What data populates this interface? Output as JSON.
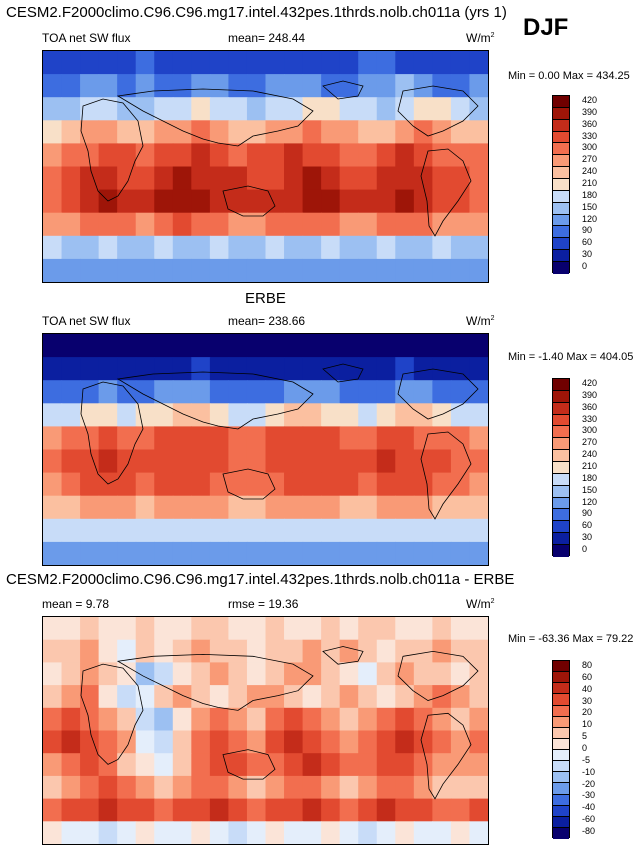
{
  "figure": {
    "title": "CESM2.F2000climo.C96.C96.mg17.intel.432pes.1thrds.nolb.ch011a (yrs 1)",
    "season": "DJF"
  },
  "colors": {
    "sw_scale": [
      "#08006e",
      "#0b1fa0",
      "#1f43c8",
      "#3d6de0",
      "#6b9bea",
      "#9cc0f2",
      "#c8dcf8",
      "#f8e0c8",
      "#fbc0a0",
      "#f99a76",
      "#f26e4f",
      "#e24a30",
      "#c42c1a",
      "#9e1508",
      "#700000"
    ],
    "diff_scale": [
      "#08006e",
      "#0b1fa0",
      "#1f43c8",
      "#3d6de0",
      "#6b9bea",
      "#9cc0f2",
      "#c8dcf8",
      "#e4eefb",
      "#fbe4d8",
      "#fbc7ae",
      "#f99a76",
      "#f26e4f",
      "#e24a30",
      "#c42c1a",
      "#9e1508",
      "#700000"
    ]
  },
  "chart_data": [
    {
      "type": "heatmap",
      "panel": "model",
      "variable_label": "TOA net SW flux",
      "mean_label": "mean=",
      "mean": "248.44",
      "units": "W/m",
      "units_exp": "2",
      "min_label": "Min =",
      "min": "0.00",
      "max_label": "Max =",
      "max": "434.25",
      "colorbar_levels": [
        "420",
        "390",
        "360",
        "330",
        "300",
        "270",
        "240",
        "210",
        "180",
        "150",
        "120",
        "90",
        "60",
        "30",
        "0"
      ],
      "field": [
        [
          2,
          2,
          2,
          2,
          2,
          3,
          2,
          2,
          2,
          2,
          2,
          2,
          2,
          2,
          2,
          2,
          2,
          3,
          3,
          2,
          2,
          2,
          2,
          2
        ],
        [
          3,
          3,
          4,
          4,
          3,
          4,
          3,
          3,
          4,
          4,
          3,
          3,
          4,
          4,
          4,
          3,
          3,
          4,
          4,
          5,
          4,
          3,
          3,
          4
        ],
        [
          5,
          5,
          6,
          6,
          5,
          5,
          6,
          6,
          7,
          6,
          6,
          5,
          6,
          6,
          7,
          7,
          6,
          6,
          5,
          6,
          7,
          7,
          6,
          5
        ],
        [
          7,
          8,
          9,
          9,
          8,
          8,
          9,
          9,
          10,
          9,
          8,
          8,
          9,
          9,
          10,
          9,
          9,
          8,
          8,
          9,
          10,
          9,
          8,
          8
        ],
        [
          9,
          10,
          10,
          11,
          11,
          10,
          11,
          11,
          12,
          11,
          10,
          11,
          11,
          12,
          11,
          11,
          10,
          10,
          11,
          12,
          11,
          10,
          10,
          10
        ],
        [
          10,
          11,
          12,
          12,
          11,
          11,
          12,
          13,
          12,
          12,
          12,
          11,
          11,
          12,
          13,
          12,
          11,
          11,
          12,
          12,
          12,
          11,
          11,
          10
        ],
        [
          10,
          11,
          12,
          13,
          12,
          12,
          13,
          13,
          13,
          12,
          12,
          12,
          12,
          12,
          13,
          13,
          12,
          12,
          12,
          13,
          12,
          11,
          11,
          10
        ],
        [
          9,
          9,
          10,
          10,
          10,
          9,
          10,
          11,
          10,
          10,
          9,
          9,
          10,
          10,
          10,
          10,
          9,
          9,
          10,
          10,
          10,
          9,
          9,
          9
        ],
        [
          6,
          5,
          5,
          6,
          5,
          5,
          6,
          5,
          5,
          6,
          5,
          5,
          6,
          5,
          5,
          6,
          5,
          5,
          6,
          5,
          5,
          6,
          5,
          5
        ],
        [
          4,
          4,
          4,
          4,
          4,
          4,
          4,
          4,
          4,
          4,
          4,
          4,
          4,
          4,
          4,
          4,
          4,
          4,
          4,
          4,
          4,
          4,
          4,
          4
        ]
      ]
    },
    {
      "type": "heatmap",
      "panel": "obs",
      "panel_title": "ERBE",
      "variable_label": "TOA net SW flux",
      "mean_label": "mean=",
      "mean": "238.66",
      "units": "W/m",
      "units_exp": "2",
      "min_label": "Min =",
      "min": "-1.40",
      "max_label": "Max =",
      "max": "404.05",
      "colorbar_levels": [
        "420",
        "390",
        "360",
        "330",
        "300",
        "270",
        "240",
        "210",
        "180",
        "150",
        "120",
        "90",
        "60",
        "30",
        "0"
      ],
      "field": [
        [
          0,
          0,
          0,
          0,
          0,
          0,
          0,
          0,
          0,
          0,
          0,
          0,
          0,
          0,
          0,
          0,
          0,
          0,
          0,
          0,
          0,
          0,
          0,
          0
        ],
        [
          1,
          1,
          1,
          1,
          1,
          1,
          1,
          1,
          2,
          1,
          1,
          1,
          1,
          1,
          1,
          1,
          1,
          1,
          1,
          2,
          1,
          1,
          1,
          1
        ],
        [
          3,
          3,
          3,
          4,
          3,
          3,
          4,
          4,
          4,
          3,
          3,
          3,
          3,
          4,
          4,
          4,
          3,
          3,
          3,
          4,
          4,
          3,
          3,
          3
        ],
        [
          6,
          6,
          7,
          7,
          6,
          7,
          7,
          8,
          8,
          7,
          6,
          6,
          7,
          8,
          8,
          7,
          7,
          6,
          7,
          8,
          8,
          7,
          6,
          6
        ],
        [
          9,
          10,
          10,
          11,
          10,
          10,
          11,
          11,
          11,
          11,
          10,
          10,
          11,
          11,
          11,
          11,
          10,
          10,
          11,
          11,
          10,
          10,
          10,
          9
        ],
        [
          10,
          11,
          11,
          12,
          11,
          11,
          11,
          11,
          11,
          11,
          10,
          10,
          11,
          11,
          11,
          11,
          11,
          11,
          12,
          11,
          11,
          11,
          10,
          10
        ],
        [
          9,
          10,
          11,
          11,
          11,
          10,
          11,
          11,
          11,
          10,
          10,
          10,
          10,
          11,
          11,
          11,
          11,
          10,
          11,
          11,
          11,
          10,
          10,
          9
        ],
        [
          8,
          8,
          9,
          9,
          9,
          8,
          9,
          9,
          9,
          9,
          8,
          8,
          9,
          9,
          9,
          9,
          8,
          8,
          9,
          9,
          9,
          8,
          8,
          8
        ],
        [
          6,
          6,
          6,
          6,
          6,
          6,
          6,
          6,
          6,
          6,
          6,
          6,
          6,
          6,
          6,
          6,
          6,
          6,
          6,
          6,
          6,
          6,
          6,
          6
        ],
        [
          4,
          4,
          4,
          4,
          4,
          4,
          4,
          4,
          4,
          4,
          4,
          4,
          4,
          4,
          4,
          4,
          4,
          4,
          4,
          4,
          4,
          4,
          4,
          4
        ]
      ]
    },
    {
      "type": "heatmap",
      "panel": "difference",
      "panel_title": "CESM2.F2000climo.C96.C96.mg17.intel.432pes.1thrds.nolb.ch011a - ERBE",
      "mean_label": "mean =",
      "mean": "9.78",
      "rmse_label": "rmse =",
      "rmse": "19.36",
      "units": "W/m",
      "units_exp": "2",
      "min_label": "Min =",
      "min": "-63.36",
      "max_label": "Max =",
      "max": "79.22",
      "colorbar_levels": [
        "80",
        "60",
        "40",
        "30",
        "20",
        "10",
        "5",
        "0",
        "-5",
        "-10",
        "-20",
        "-30",
        "-40",
        "-60",
        "-80"
      ],
      "field": [
        [
          8,
          8,
          9,
          8,
          8,
          9,
          8,
          8,
          9,
          9,
          8,
          8,
          9,
          8,
          8,
          9,
          8,
          9,
          9,
          8,
          8,
          9,
          8,
          8
        ],
        [
          9,
          9,
          10,
          8,
          7,
          9,
          8,
          9,
          10,
          9,
          9,
          8,
          9,
          9,
          10,
          9,
          10,
          9,
          8,
          9,
          9,
          10,
          9,
          9
        ],
        [
          8,
          9,
          10,
          9,
          8,
          5,
          6,
          8,
          9,
          10,
          9,
          8,
          9,
          10,
          10,
          9,
          8,
          7,
          9,
          10,
          9,
          9,
          8,
          9
        ],
        [
          9,
          10,
          11,
          8,
          6,
          7,
          9,
          10,
          9,
          8,
          9,
          10,
          10,
          9,
          8,
          9,
          10,
          9,
          8,
          9,
          10,
          11,
          10,
          9
        ],
        [
          11,
          12,
          11,
          10,
          9,
          6,
          5,
          8,
          10,
          11,
          10,
          9,
          11,
          12,
          11,
          10,
          9,
          10,
          11,
          12,
          11,
          10,
          9,
          10
        ],
        [
          12,
          13,
          12,
          11,
          10,
          7,
          6,
          9,
          11,
          12,
          11,
          10,
          12,
          13,
          12,
          11,
          10,
          11,
          12,
          13,
          12,
          11,
          10,
          11
        ],
        [
          10,
          11,
          12,
          11,
          9,
          8,
          7,
          9,
          11,
          12,
          12,
          11,
          11,
          12,
          13,
          12,
          11,
          11,
          12,
          12,
          11,
          10,
          10,
          10
        ],
        [
          9,
          10,
          11,
          12,
          11,
          10,
          9,
          10,
          11,
          11,
          10,
          9,
          10,
          11,
          11,
          10,
          9,
          10,
          11,
          11,
          10,
          9,
          9,
          9
        ],
        [
          11,
          12,
          12,
          13,
          12,
          12,
          11,
          12,
          12,
          13,
          12,
          11,
          12,
          12,
          13,
          12,
          11,
          12,
          13,
          12,
          12,
          11,
          11,
          12
        ],
        [
          8,
          7,
          7,
          6,
          7,
          8,
          7,
          7,
          8,
          7,
          6,
          7,
          8,
          7,
          7,
          8,
          7,
          6,
          7,
          8,
          7,
          7,
          8,
          7
        ]
      ]
    }
  ]
}
